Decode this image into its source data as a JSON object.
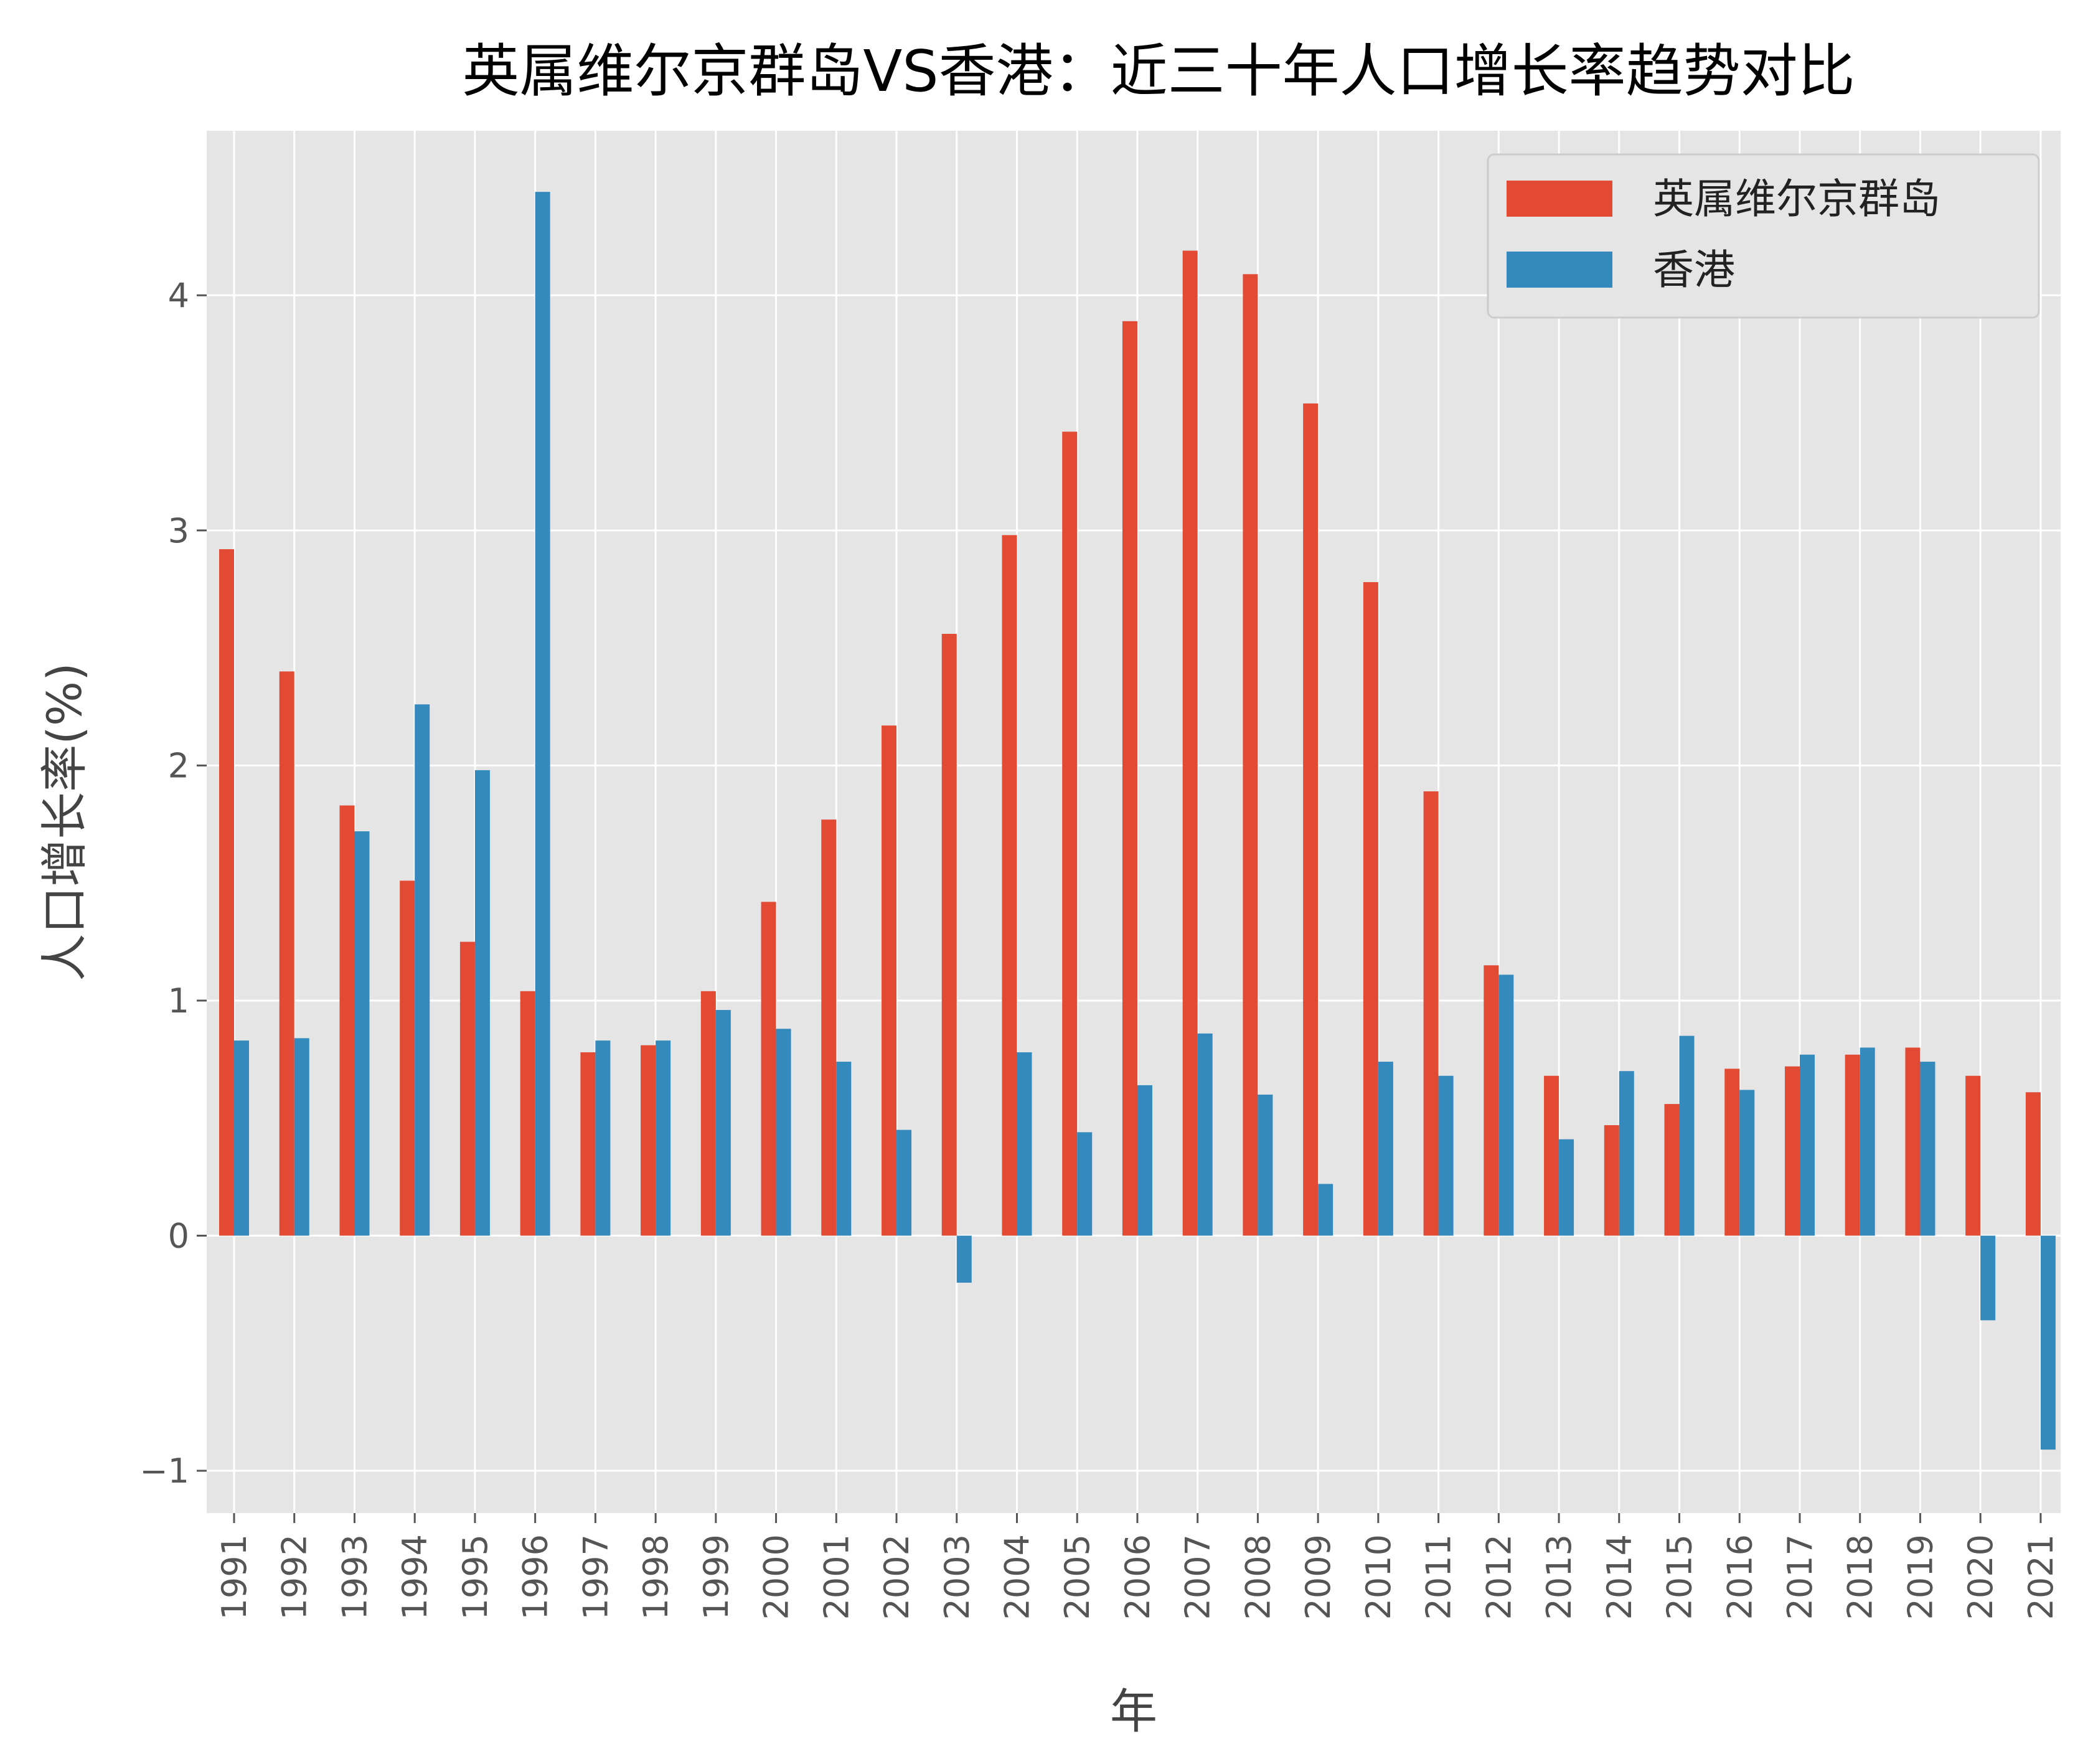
{
  "chart_data": {
    "type": "bar",
    "title": "英属维尔京群岛VS香港：近三十年人口增长率趋势对比",
    "xlabel": "年",
    "ylabel": "人口增长率(%)",
    "ylim": [
      -1.18,
      4.7
    ],
    "yticks": [
      -1,
      0,
      1,
      2,
      3,
      4
    ],
    "ytick_labels": [
      "−1",
      "0",
      "1",
      "2",
      "3",
      "4"
    ],
    "grid": true,
    "legend_position": "top-right",
    "categories": [
      "1991",
      "1992",
      "1993",
      "1994",
      "1995",
      "1996",
      "1997",
      "1998",
      "1999",
      "2000",
      "2001",
      "2002",
      "2003",
      "2004",
      "2005",
      "2006",
      "2007",
      "2008",
      "2009",
      "2010",
      "2011",
      "2012",
      "2013",
      "2014",
      "2015",
      "2016",
      "2017",
      "2018",
      "2019",
      "2020",
      "2021"
    ],
    "series": [
      {
        "name": "英属维尔京群岛",
        "color": "#E24A33",
        "values": [
          2.92,
          2.4,
          1.83,
          1.51,
          1.25,
          1.04,
          0.78,
          0.81,
          1.04,
          1.42,
          1.77,
          2.17,
          2.56,
          2.98,
          3.42,
          3.89,
          4.19,
          4.09,
          3.54,
          2.78,
          1.89,
          1.15,
          0.68,
          0.47,
          0.56,
          0.71,
          0.72,
          0.77,
          0.8,
          0.68,
          0.61
        ]
      },
      {
        "name": "香港",
        "color": "#348ABD",
        "values": [
          0.83,
          0.84,
          1.72,
          2.26,
          1.98,
          4.44,
          0.83,
          0.83,
          0.96,
          0.88,
          0.74,
          0.45,
          -0.2,
          0.78,
          0.44,
          0.64,
          0.86,
          0.6,
          0.22,
          0.74,
          0.68,
          1.11,
          0.41,
          0.7,
          0.85,
          0.62,
          0.77,
          0.8,
          0.74,
          -0.36,
          -0.91
        ]
      }
    ],
    "style": {
      "plot_background": "#E5E5E5",
      "grid_color": "#FFFFFF"
    }
  }
}
